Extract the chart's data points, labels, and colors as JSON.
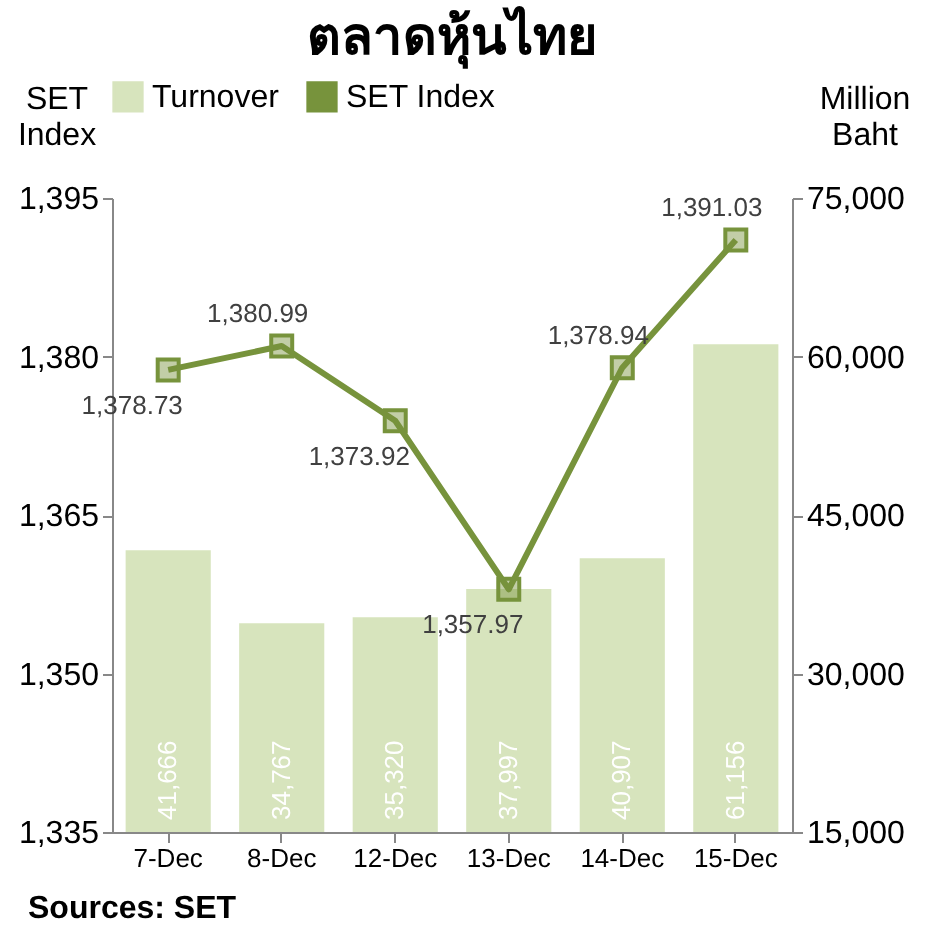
{
  "chart_data": {
    "type": "bar",
    "title": "ตลาดหุ้นไทย",
    "categories": [
      "7-Dec",
      "8-Dec",
      "12-Dec",
      "13-Dec",
      "14-Dec",
      "15-Dec"
    ],
    "series": [
      {
        "name": "Turnover",
        "axis": "y2",
        "color": "#d7e4bd",
        "values": [
          41666,
          34767,
          35320,
          37997,
          40907,
          61156
        ],
        "value_labels": [
          "41,666",
          "34,767",
          "35,320",
          "37,997",
          "40,907",
          "61,156"
        ]
      },
      {
        "name": "SET Index",
        "type": "line",
        "axis": "y",
        "color": "#77933c",
        "values": [
          1378.73,
          1380.99,
          1373.92,
          1357.97,
          1378.94,
          1391.03
        ],
        "value_labels": [
          "1,378.73",
          "1,380.99",
          "1,373.92",
          "1,357.97",
          "1,378.94",
          "1,391.03"
        ]
      }
    ],
    "ylabel": "SET Index",
    "y2label": "Million Baht",
    "ylim": [
      1335,
      1395
    ],
    "yticks": [
      {
        "value": 1335,
        "label": "1,335"
      },
      {
        "value": 1350,
        "label": "1,350"
      },
      {
        "value": 1365,
        "label": "1,365"
      },
      {
        "value": 1380,
        "label": "1,380"
      },
      {
        "value": 1395,
        "label": "1,395"
      }
    ],
    "y2lim": [
      15000,
      75000
    ],
    "y2ticks": [
      {
        "value": 15000,
        "label": "15,000"
      },
      {
        "value": 30000,
        "label": "30,000"
      },
      {
        "value": 45000,
        "label": "45,000"
      },
      {
        "value": 60000,
        "label": "60,000"
      },
      {
        "value": 75000,
        "label": "75,000"
      }
    ],
    "marker": "square",
    "legend": "top",
    "grid": false,
    "annotations": [
      "Sources: SET"
    ]
  }
}
